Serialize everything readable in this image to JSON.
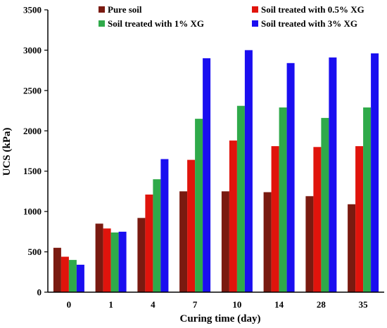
{
  "chart_data": {
    "type": "bar",
    "title": "",
    "xlabel": "Curing time (day)",
    "ylabel": "UCS (kPa)",
    "ylim": [
      0,
      3500
    ],
    "yticks": [
      0,
      500,
      1000,
      1500,
      2000,
      2500,
      3000,
      3500
    ],
    "categories": [
      "0",
      "1",
      "4",
      "7",
      "10",
      "14",
      "28",
      "35"
    ],
    "legend_position": "top",
    "grid": false,
    "series": [
      {
        "name": "Pure soil",
        "color": "#7a1a10",
        "values": [
          550,
          850,
          920,
          1250,
          1250,
          1240,
          1190,
          1090
        ]
      },
      {
        "name": "Soil treated with 0.5% XG",
        "color": "#e0140c",
        "values": [
          440,
          790,
          1210,
          1640,
          1880,
          1810,
          1800,
          1810
        ]
      },
      {
        "name": "Soil treated with 1% XG",
        "color": "#2faa4a",
        "values": [
          400,
          740,
          1400,
          2150,
          2310,
          2290,
          2160,
          2290
        ]
      },
      {
        "name": "Soil treated with 3% XG",
        "color": "#1a0ef0",
        "values": [
          340,
          750,
          1650,
          2900,
          3000,
          2840,
          2910,
          2960
        ]
      }
    ]
  }
}
